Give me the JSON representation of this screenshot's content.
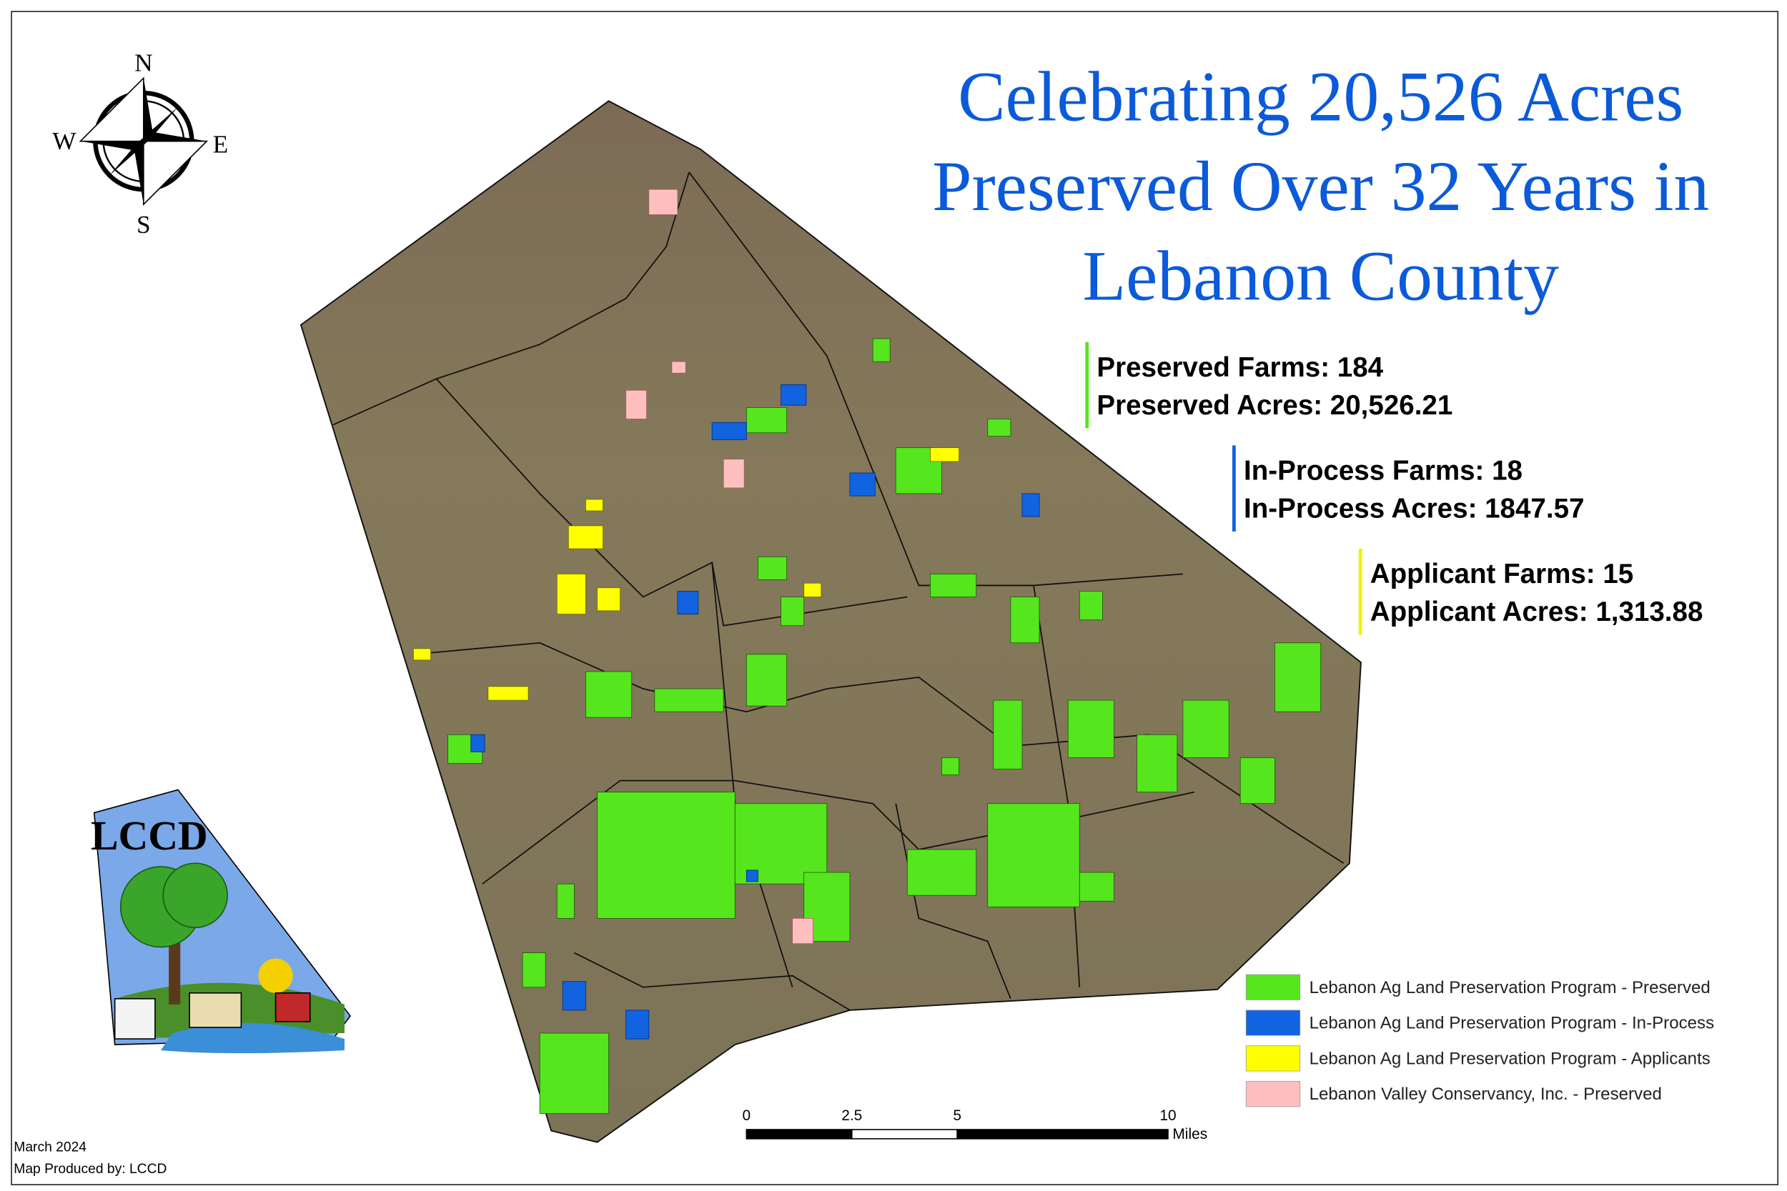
{
  "title": {
    "lines": [
      "Celebrating 20,526 Acres",
      "Preserved Over 32 Years in",
      "Lebanon County"
    ],
    "color": "#0b5ad9"
  },
  "stats": [
    {
      "color": "#55e61e",
      "lines": [
        "Preserved Farms: 184",
        "Preserved Acres: 20,526.21"
      ]
    },
    {
      "color": "#1163e0",
      "lines": [
        "In-Process Farms: 18",
        "In-Process Acres: 1847.57"
      ]
    },
    {
      "color": "#f2f200",
      "lines": [
        "Applicant Farms: 15",
        "Applicant Acres: 1,313.88"
      ]
    }
  ],
  "legend": [
    {
      "label": "Lebanon Ag Land Preservation Program - Preserved",
      "color": "#55e61e"
    },
    {
      "label": "Lebanon Ag Land Preservation Program - In-Process",
      "color": "#1163e0"
    },
    {
      "label": "Lebanon Ag Land Preservation Program - Applicants",
      "color": "#ffff00"
    },
    {
      "label": "Lebanon Valley Conservancy, Inc. - Preserved",
      "color": "#ffbfbf"
    }
  ],
  "compass": {
    "n": "N",
    "s": "S",
    "e": "E",
    "w": "W"
  },
  "logo": {
    "text": "LCCD"
  },
  "scale": {
    "ticks": [
      0,
      2.5,
      5,
      10
    ],
    "unit": "Miles"
  },
  "footer": {
    "date": "March 2024",
    "credit": "Map Produced by: LCCD"
  }
}
